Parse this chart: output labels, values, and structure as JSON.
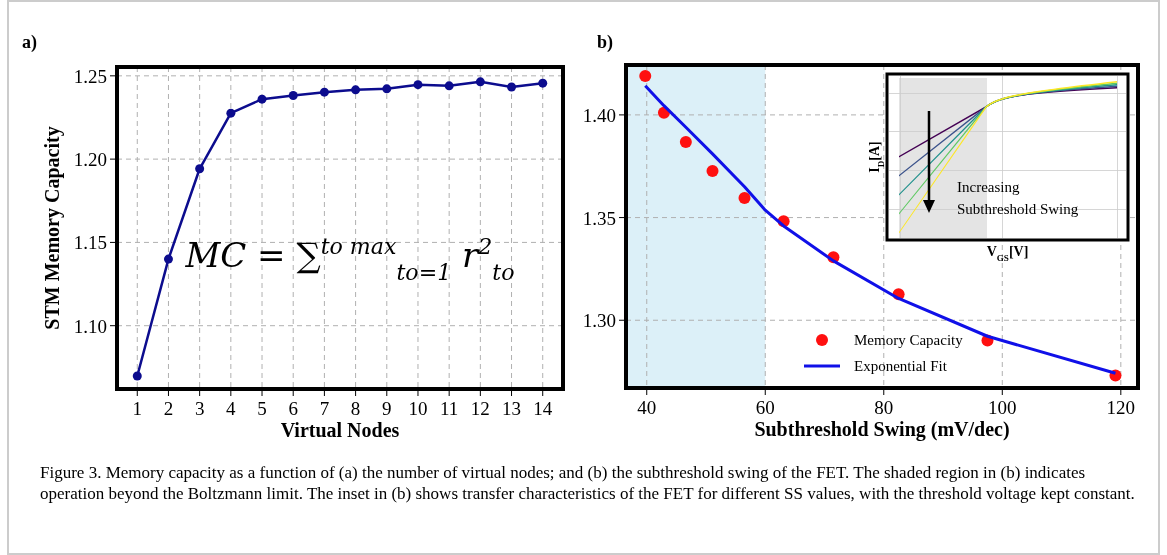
{
  "chart_data": [
    {
      "type": "line",
      "title": "a)",
      "xlabel": "Virtual Nodes",
      "ylabel": "STM Memory Capacity",
      "x": [
        1,
        2,
        3,
        4,
        5,
        6,
        7,
        8,
        9,
        10,
        11,
        12,
        13,
        14
      ],
      "series": [
        {
          "color": "#0c0c8e",
          "values": [
            1.0698,
            1.14,
            1.1942,
            1.2276,
            1.236,
            1.2382,
            1.2402,
            1.2416,
            1.2422,
            1.2447,
            1.244,
            1.2464,
            1.2433,
            1.2456
          ]
        }
      ],
      "xlim": [
        0.35,
        14.65
      ],
      "xticks": [
        1,
        2,
        3,
        4,
        5,
        6,
        7,
        8,
        9,
        10,
        11,
        12,
        13,
        14
      ],
      "ylim": [
        1.062,
        1.2553
      ],
      "yticks": [
        {
          "value": 1.1,
          "label": "1.10"
        },
        {
          "value": 1.15,
          "label": "1.15"
        },
        {
          "value": 1.2,
          "label": "1.20"
        },
        {
          "value": 1.25,
          "label": "1.25"
        }
      ],
      "grid": true,
      "marker": "circle",
      "line_style": "solid",
      "annotations": [
        "MC = ∑$^{to max}$$_{to=1}$ r$^{2}$$_{to}$",
        "Figure 3. Memory capacity as a function of (a) the number of virtual nodes; and (b) the subthreshold swing of the FET. The shaded region in (b) indicates operation beyond the Boltzmann limit. The inset in (b) shows transfer characteristics of the FET for different SS values, with the threshold voltage kept constant."
      ]
    },
    {
      "type": "scatter",
      "title": "b)",
      "xlabel": "Subthreshold Swing (mV/dec)",
      "series": [
        {
          "name": "Memory Capacity",
          "color": "#ff1010",
          "x": [
            39.75,
            42.9,
            46.6,
            51.1,
            56.5,
            63.1,
            71.5,
            82.5,
            97.5,
            119.1
          ],
          "values": [
            1.4189,
            1.4011,
            1.3868,
            1.3727,
            1.3595,
            1.3482,
            1.3307,
            1.3127,
            1.2901,
            1.2731
          ]
        },
        {
          "type": "line",
          "name": "Exponential Fit",
          "color": "#1010e8",
          "x": [
            39.75,
            42.9,
            46.6,
            51.1,
            56.5,
            60,
            63.1,
            71.5,
            82.5,
            97.5,
            119.1
          ],
          "values": [
            1.4142,
            1.4045,
            1.394,
            1.381,
            1.365,
            1.3536,
            1.3459,
            1.3289,
            1.3106,
            1.2922,
            1.2742
          ]
        }
      ],
      "xlim": [
        36.5,
        122.9
      ],
      "xticks": [
        40,
        60,
        80,
        100,
        120
      ],
      "ylim": [
        1.267,
        1.4243
      ],
      "yticks": [
        {
          "value": 1.3,
          "label": "1.30"
        },
        {
          "value": 1.35,
          "label": "1.35"
        },
        {
          "value": 1.4,
          "label": "1.40"
        }
      ],
      "bands": [
        {
          "axis": "x",
          "from": 36.5,
          "to": 60,
          "color": "#dcf0f8"
        }
      ],
      "grid": true,
      "legend": "bottom",
      "annotations": [
        "I$_{D}$[A]",
        "V$_{GS}$[V]",
        "Increasing\nSubthreshold Swing"
      ]
    }
  ]
}
